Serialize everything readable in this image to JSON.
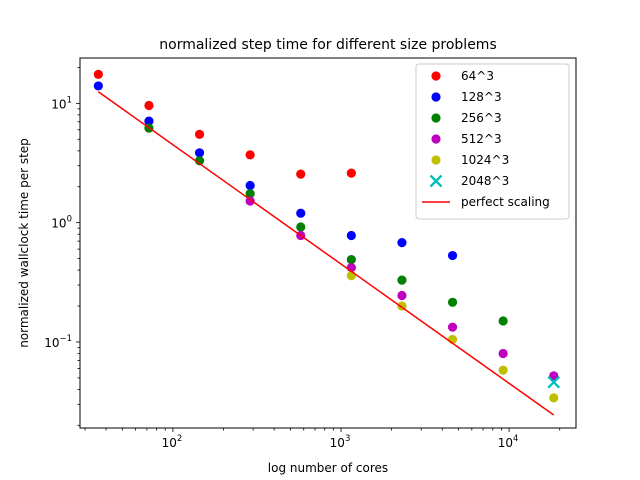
{
  "chart_data": {
    "type": "scatter",
    "title": "normalized step time for different size problems",
    "xlabel": "log number of cores",
    "ylabel": "normalized wallclock time per step",
    "xscale": "log",
    "yscale": "log",
    "xlim": [
      28,
      25000
    ],
    "ylim": [
      0.019,
      24
    ],
    "legend_position": "upper-right",
    "xticks": [
      {
        "base": "10",
        "exp": "2",
        "value": 100
      },
      {
        "base": "10",
        "exp": "3",
        "value": 1000
      },
      {
        "base": "10",
        "exp": "4",
        "value": 10000
      }
    ],
    "yticks": [
      {
        "base": "10",
        "exp": "−1",
        "value": 0.1
      },
      {
        "base": "10",
        "exp": "0",
        "value": 1
      },
      {
        "base": "10",
        "exp": "1",
        "value": 10
      }
    ],
    "series": [
      {
        "name": "64^3",
        "color": "#ff0000",
        "marker": "circle",
        "x": [
          36,
          72,
          144,
          288,
          576,
          1152
        ],
        "y": [
          17.5,
          9.6,
          5.5,
          3.7,
          2.55,
          2.6
        ]
      },
      {
        "name": "128^3",
        "color": "#0000ff",
        "marker": "circle",
        "x": [
          36,
          72,
          144,
          288,
          576,
          1152,
          2304,
          4608
        ],
        "y": [
          14.0,
          7.1,
          3.85,
          2.05,
          1.2,
          0.78,
          0.68,
          0.53
        ]
      },
      {
        "name": "256^3",
        "color": "#008000",
        "marker": "circle",
        "x": [
          72,
          144,
          288,
          576,
          1152,
          2304,
          4608,
          9216
        ],
        "y": [
          6.2,
          3.3,
          1.75,
          0.92,
          0.49,
          0.33,
          0.215,
          0.15
        ]
      },
      {
        "name": "512^3",
        "color": "#bf00bf",
        "marker": "circle",
        "x": [
          288,
          576,
          1152,
          2304,
          4608,
          9216,
          18432
        ],
        "y": [
          1.52,
          0.78,
          0.42,
          0.245,
          0.133,
          0.08,
          0.052
        ]
      },
      {
        "name": "1024^3",
        "color": "#bfbf00",
        "marker": "circle",
        "x": [
          1152,
          2304,
          4608,
          9216,
          18432
        ],
        "y": [
          0.36,
          0.2,
          0.105,
          0.058,
          0.034
        ]
      },
      {
        "name": "2048^3",
        "color": "#00bfbf",
        "marker": "x-filled",
        "x": [
          18432
        ],
        "y": [
          0.046
        ]
      },
      {
        "name": "perfect scaling",
        "color": "#ff0000",
        "marker": "line",
        "x": [
          36,
          18432
        ],
        "y": [
          12.5,
          0.0244
        ]
      }
    ]
  }
}
